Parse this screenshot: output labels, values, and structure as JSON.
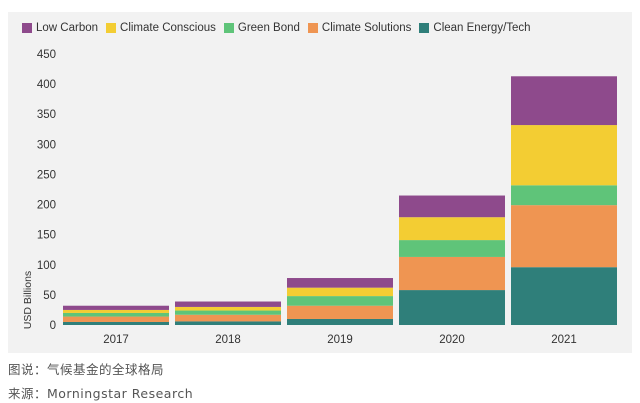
{
  "chart_data": {
    "type": "bar",
    "stacked": true,
    "categories": [
      "2017",
      "2018",
      "2019",
      "2020",
      "2021"
    ],
    "ylabel": "USD Billions",
    "ylim": [
      0,
      450
    ],
    "yticks": [
      0,
      50,
      100,
      150,
      200,
      250,
      300,
      350,
      400,
      450
    ],
    "grid": false,
    "legend_position": "top",
    "series": [
      {
        "name": "Clean Energy/Tech",
        "color": "#2f7f7a",
        "values": [
          5,
          6,
          10,
          58,
          96
        ]
      },
      {
        "name": "Climate Solutions",
        "color": "#ef9552",
        "values": [
          9,
          11,
          22,
          55,
          103
        ]
      },
      {
        "name": "Green Bond",
        "color": "#5fc479",
        "values": [
          6,
          7,
          16,
          28,
          33
        ]
      },
      {
        "name": "Climate Conscious",
        "color": "#f3cd33",
        "values": [
          5,
          6,
          14,
          38,
          100
        ]
      },
      {
        "name": "Low Carbon",
        "color": "#8e4a8c",
        "values": [
          7,
          9,
          16,
          36,
          81
        ]
      }
    ]
  },
  "legend": [
    {
      "label": "Low Carbon",
      "color": "#8e4a8c"
    },
    {
      "label": "Climate Conscious",
      "color": "#f3cd33"
    },
    {
      "label": "Green Bond",
      "color": "#5fc479"
    },
    {
      "label": "Climate Solutions",
      "color": "#ef9552"
    },
    {
      "label": "Clean Energy/Tech",
      "color": "#2f7f7a"
    }
  ],
  "caption": {
    "line1": "图说：气候基金的全球格局",
    "line2": "来源：Morningstar Research"
  }
}
